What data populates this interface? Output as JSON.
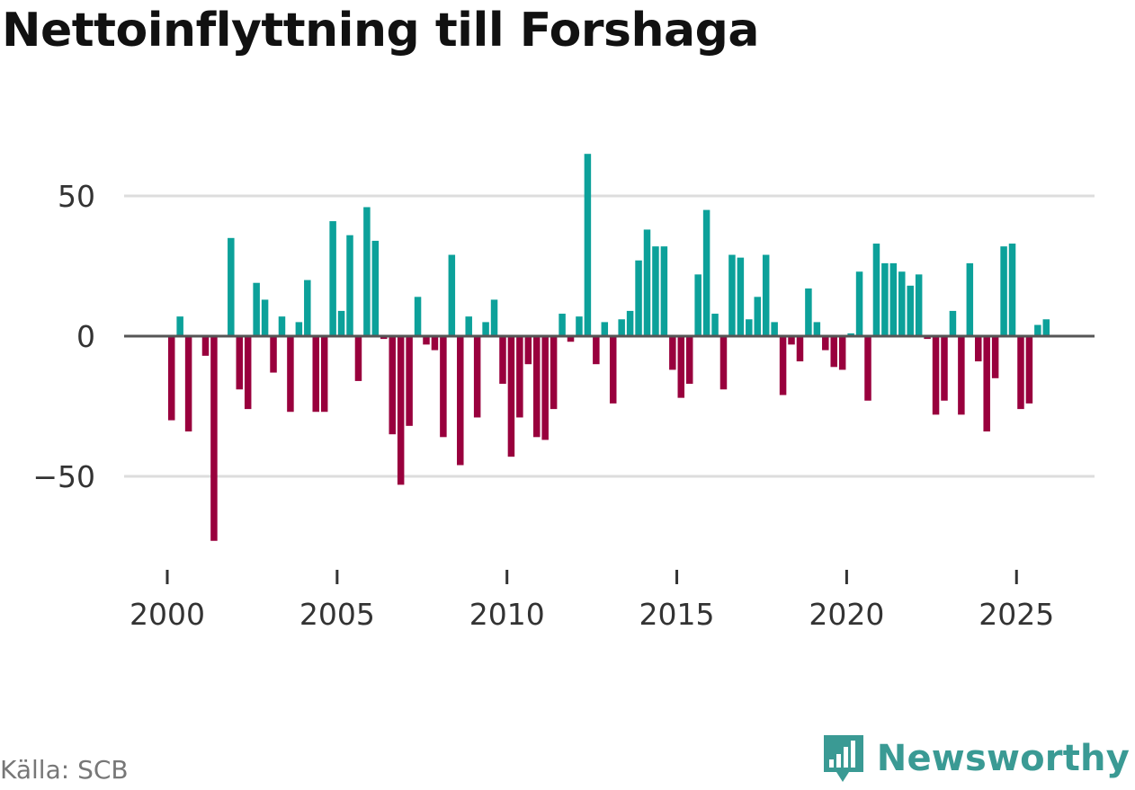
{
  "title": "Nettoinflyttning till Forshaga",
  "source": "Källa: SCB",
  "brand": "Newsworthy",
  "colors": {
    "positive": "#0ca19a",
    "negative": "#99003d",
    "grid": "#dddddd",
    "zero": "#555555",
    "brand": "#3a9a94"
  },
  "chart_data": {
    "type": "bar",
    "title": "Nettoinflyttning till Forshaga",
    "xlabel": "",
    "ylabel": "",
    "frequency": "quarterly",
    "start": 2000,
    "ylim": [
      -75,
      70
    ],
    "xlim": [
      1999.25,
      2027.25
    ],
    "yticks": [
      50,
      0,
      -50
    ],
    "ytick_labels": [
      "50",
      "0",
      "−50"
    ],
    "xticks": [
      2000,
      2005,
      2010,
      2015,
      2020,
      2025
    ],
    "xtick_labels": [
      "2000",
      "2005",
      "2010",
      "2015",
      "2020",
      "2025"
    ],
    "values": [
      -30,
      7,
      -34,
      0,
      -7,
      -73,
      0,
      35,
      -19,
      -26,
      19,
      13,
      -13,
      7,
      -27,
      5,
      20,
      -27,
      -27,
      41,
      9,
      36,
      -16,
      46,
      34,
      -1,
      -35,
      -53,
      -32,
      14,
      -3,
      -5,
      -36,
      29,
      -46,
      7,
      -29,
      5,
      13,
      -17,
      -43,
      -29,
      -10,
      -36,
      -37,
      -26,
      8,
      -2,
      7,
      65,
      -10,
      5,
      -24,
      6,
      9,
      27,
      38,
      32,
      32,
      -12,
      -22,
      -17,
      22,
      45,
      8,
      -19,
      29,
      28,
      6,
      14,
      29,
      5,
      -21,
      -3,
      -9,
      17,
      5,
      -5,
      -11,
      -12,
      1,
      23,
      -23,
      33,
      26,
      26,
      23,
      18,
      22,
      -1,
      -28,
      -23,
      9,
      -28,
      26,
      -9,
      -34,
      -15,
      32,
      33,
      -26,
      -24,
      4,
      6
    ]
  }
}
